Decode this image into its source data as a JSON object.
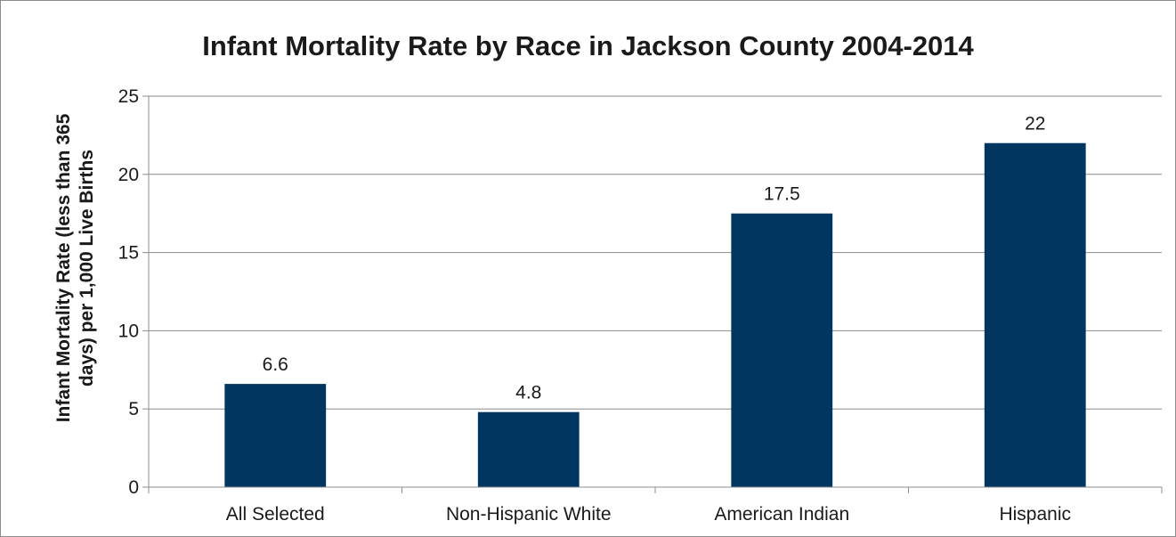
{
  "chart_data": {
    "type": "bar",
    "title": "Infant Mortality Rate by Race in Jackson County 2004-2014",
    "xlabel": "",
    "ylabel_lines": [
      "Infant Mortality Rate (less than 365",
      "days) per 1,000 Live Births"
    ],
    "categories": [
      "All Selected",
      "Non-Hispanic White",
      "American Indian",
      "Hispanic"
    ],
    "values": [
      6.6,
      4.8,
      17.5,
      22
    ],
    "data_labels": [
      "6.6",
      "4.8",
      "17.5",
      "22"
    ],
    "ylim": [
      0,
      25
    ],
    "yticks": [
      0,
      5,
      10,
      15,
      20,
      25
    ],
    "grid": true,
    "legend": "none",
    "bar_color": "#00365f"
  }
}
